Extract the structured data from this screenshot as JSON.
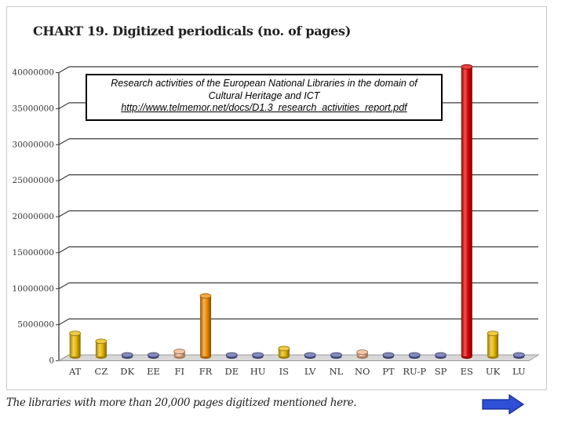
{
  "chart_data": {
    "type": "bar",
    "title": "CHART 19. Digitized periodicals (no. of pages)",
    "xlabel": "",
    "ylabel": "",
    "ylim": [
      0,
      40000000
    ],
    "y_ticks": [
      "0",
      "5000000",
      "10000000",
      "15000000",
      "20000000",
      "25000000",
      "30000000",
      "35000000",
      "40000000"
    ],
    "y_tick_values": [
      0,
      5000000,
      10000000,
      15000000,
      20000000,
      25000000,
      30000000,
      35000000,
      40000000
    ],
    "categories": [
      "AT",
      "CZ",
      "DK",
      "EE",
      "FI",
      "FR",
      "DE",
      "HU",
      "IS",
      "LV",
      "NL",
      "NO",
      "PT",
      "RU-P",
      "SP",
      "ES",
      "UK",
      "LU"
    ],
    "values": [
      3200000,
      2100000,
      0,
      0,
      700000,
      8400000,
      0,
      0,
      1100000,
      0,
      0,
      600000,
      0,
      0,
      0,
      40200000,
      3200000,
      0
    ],
    "bar_colors": [
      "#e8b800",
      "#e8b800",
      "#5a64a8",
      "#5a64a8",
      "#f2b48a",
      "#f08c00",
      "#5a64a8",
      "#5a64a8",
      "#e8b800",
      "#5a64a8",
      "#5a64a8",
      "#f2b48a",
      "#5a64a8",
      "#5a64a8",
      "#5a64a8",
      "#e00000",
      "#e8b800",
      "#5a64a8"
    ],
    "grid": true,
    "legend": "none"
  },
  "source_box": {
    "line1": "Research activities of the European National Libraries in the domain of",
    "line2": "Cultural Heritage and ICT",
    "link": "http://www.telmemor.net/docs/D1.3_research_activities_report.pdf"
  },
  "footnote": "The libraries with more than 20,000 pages digitized mentioned here.",
  "colors": {
    "arrow": "#2e4fd6",
    "grid": "#3a3a3a",
    "floor": "#9a9a9a"
  }
}
